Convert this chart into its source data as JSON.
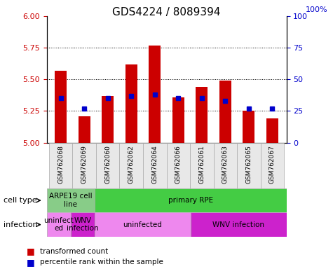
{
  "title": "GDS4224 / 8089394",
  "samples": [
    "GSM762068",
    "GSM762069",
    "GSM762060",
    "GSM762062",
    "GSM762064",
    "GSM762066",
    "GSM762061",
    "GSM762063",
    "GSM762065",
    "GSM762067"
  ],
  "transformed_counts": [
    5.57,
    5.21,
    5.37,
    5.62,
    5.77,
    5.36,
    5.44,
    5.49,
    5.25,
    5.19
  ],
  "percentile_ranks": [
    35,
    27,
    35,
    37,
    38,
    35,
    35,
    33,
    27,
    27
  ],
  "y_min": 5.0,
  "y_max": 6.0,
  "y_ticks": [
    5.0,
    5.25,
    5.5,
    5.75,
    6.0
  ],
  "y2_ticks": [
    0,
    25,
    50,
    75,
    100
  ],
  "bar_color": "#cc0000",
  "dot_color": "#0000cc",
  "bar_width": 0.5,
  "cell_type_spans": [
    {
      "label": "ARPE19 cell\nline",
      "start": 0,
      "end": 2,
      "color": "#88cc88"
    },
    {
      "label": "primary RPE",
      "start": 2,
      "end": 10,
      "color": "#44cc44"
    }
  ],
  "infection_spans": [
    {
      "label": "uninfect\ned",
      "start": 0,
      "end": 1,
      "color": "#ee88ee"
    },
    {
      "label": "WNV\ninfection",
      "start": 1,
      "end": 2,
      "color": "#cc22cc"
    },
    {
      "label": "uninfected",
      "start": 2,
      "end": 6,
      "color": "#ee88ee"
    },
    {
      "label": "WNV infection",
      "start": 6,
      "end": 10,
      "color": "#cc22cc"
    }
  ],
  "legend_label_red": "transformed count",
  "legend_label_blue": "percentile rank within the sample",
  "cell_type_label": "cell type",
  "infection_label": "infection",
  "tick_label_color_left": "#cc0000",
  "tick_label_color_right": "#0000cc"
}
